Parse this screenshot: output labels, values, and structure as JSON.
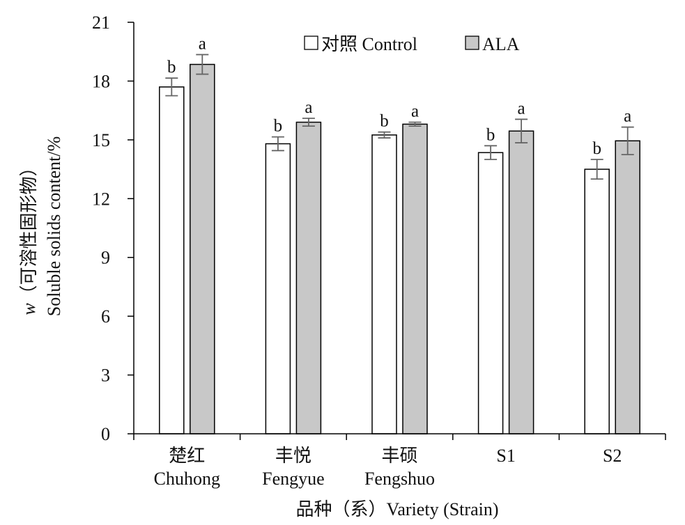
{
  "chart_data": {
    "type": "bar",
    "categories": [
      {
        "zh": "楚红",
        "en": "Chuhong"
      },
      {
        "zh": "丰悦",
        "en": "Fengyue"
      },
      {
        "zh": "丰硕",
        "en": "Fengshuo"
      },
      {
        "zh": "",
        "en": "S1"
      },
      {
        "zh": "",
        "en": "S2"
      }
    ],
    "series": [
      {
        "name": "对照 Control",
        "color": "#ffffff",
        "values": [
          17.7,
          14.8,
          15.25,
          14.35,
          13.5
        ],
        "errors": [
          0.45,
          0.35,
          0.15,
          0.35,
          0.5
        ],
        "sig": [
          "b",
          "b",
          "b",
          "b",
          "b"
        ]
      },
      {
        "name": "ALA",
        "color": "#c8c8c8",
        "values": [
          18.85,
          15.9,
          15.8,
          15.45,
          14.95
        ],
        "errors": [
          0.5,
          0.2,
          0.1,
          0.6,
          0.7
        ],
        "sig": [
          "a",
          "a",
          "a",
          "a",
          "a"
        ]
      }
    ],
    "ylim": [
      0,
      21
    ],
    "yticks": [
      "0",
      "3",
      "6",
      "9",
      "12",
      "15",
      "18",
      "21"
    ],
    "ylabel_line1_italic": "w",
    "ylabel_line1": "（可溶性固形物）",
    "ylabel_line2": "Soluble solids content/%",
    "xlabel": "品种（系）Variety (Strain)",
    "legend_position": "top-center",
    "grid": false
  }
}
